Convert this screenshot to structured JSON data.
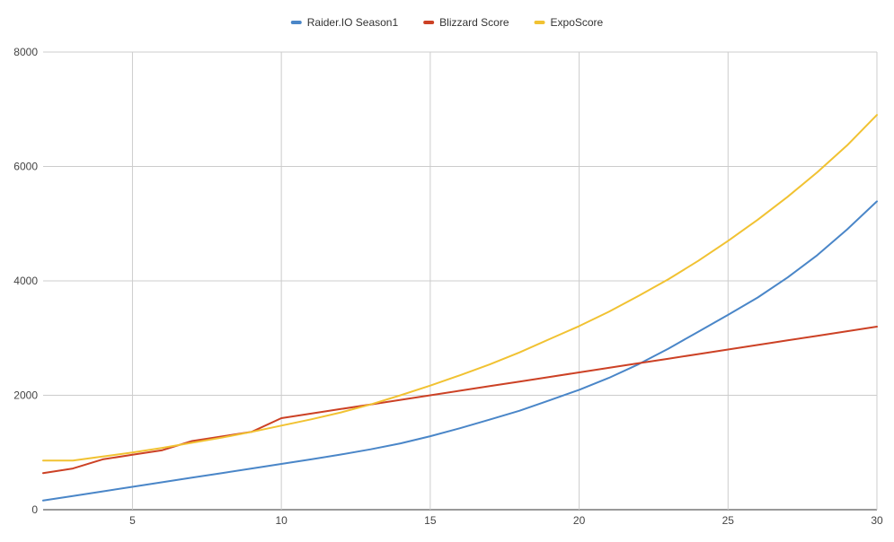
{
  "chart_data": {
    "type": "line",
    "title": "",
    "xlabel": "",
    "ylabel": "",
    "xlim": [
      2,
      30
    ],
    "ylim": [
      0,
      8000
    ],
    "x_ticks": [
      5,
      10,
      15,
      20,
      25,
      30
    ],
    "x_tick_labels": [
      "5",
      "10",
      "15",
      "20",
      "25",
      "30"
    ],
    "y_ticks": [
      0,
      2000,
      4000,
      6000,
      8000
    ],
    "y_tick_labels": [
      "0",
      "2000",
      "4000",
      "6000",
      "8000"
    ],
    "grid": true,
    "legend_position": "top-center",
    "x": [
      2,
      3,
      4,
      5,
      6,
      7,
      8,
      9,
      10,
      11,
      12,
      13,
      14,
      15,
      16,
      17,
      18,
      19,
      20,
      21,
      22,
      23,
      24,
      25,
      26,
      27,
      28,
      29,
      30
    ],
    "series": [
      {
        "name": "Raider.IO Season1",
        "color": "#4a86c8",
        "values": [
          160,
          240,
          320,
          400,
          480,
          560,
          640,
          720,
          800,
          880,
          965,
          1055,
          1160,
          1285,
          1425,
          1575,
          1730,
          1910,
          2095,
          2305,
          2545,
          2815,
          3110,
          3405,
          3710,
          4060,
          4450,
          4900,
          5390
        ]
      },
      {
        "name": "Blizzard Score",
        "color": "#cc4125",
        "values": [
          640,
          720,
          880,
          960,
          1040,
          1200,
          1280,
          1360,
          1600,
          1680,
          1760,
          1840,
          1920,
          2000,
          2080,
          2160,
          2240,
          2320,
          2400,
          2480,
          2560,
          2640,
          2720,
          2800,
          2880,
          2960,
          3040,
          3120,
          3200
        ]
      },
      {
        "name": "ExpoScore",
        "color": "#f1c232",
        "values": [
          860,
          860,
          930,
          1000,
          1080,
          1170,
          1260,
          1360,
          1470,
          1580,
          1700,
          1840,
          2000,
          2170,
          2350,
          2540,
          2750,
          2980,
          3210,
          3460,
          3740,
          4030,
          4350,
          4700,
          5070,
          5470,
          5900,
          6370,
          6900
        ]
      }
    ]
  }
}
